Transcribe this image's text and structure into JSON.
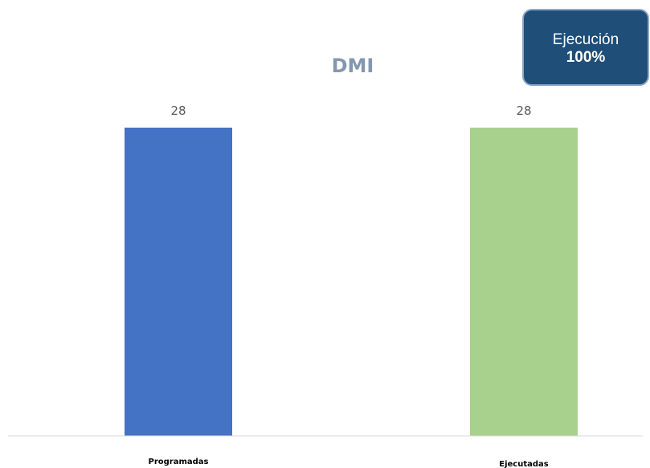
{
  "chart_data": {
    "type": "bar",
    "title": "DMI",
    "categories": [
      "Programadas",
      "Ejecutadas"
    ],
    "values": [
      28,
      28
    ],
    "colors": [
      "#4472c4",
      "#a9d18e"
    ],
    "ylim": [
      0,
      28
    ],
    "grid": false,
    "data_labels": true
  },
  "badge": {
    "label": "Ejecución",
    "value": "100%",
    "background": "#1f4e79"
  }
}
